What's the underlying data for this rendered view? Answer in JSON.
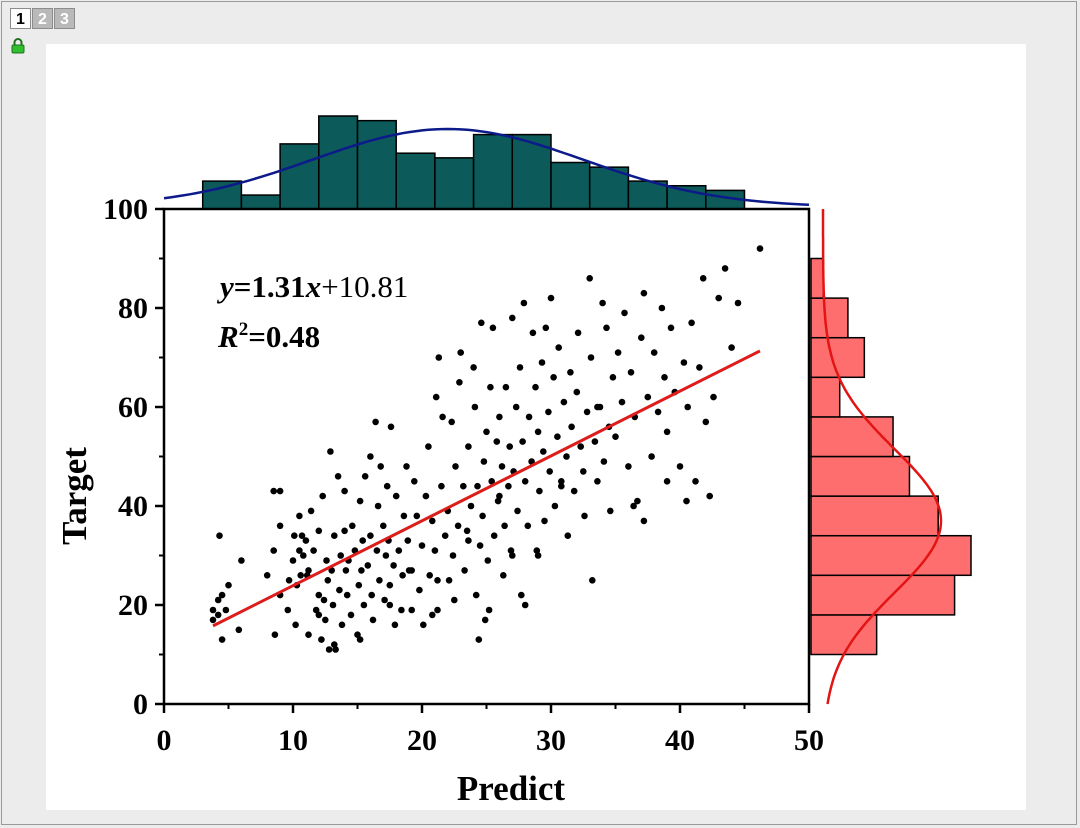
{
  "layer_tabs": [
    "1",
    "2",
    "3"
  ],
  "active_layer": "1",
  "colors": {
    "scatter_point": "#000000",
    "fit_line": "#dd1c1c",
    "top_hist_fill": "#0c5a5a",
    "top_curve": "#0c1a8a",
    "right_hist_fill": "#ff6e6e",
    "right_curve": "#e31414",
    "canvas_bg": "#ffffff",
    "window_bg": "#ececec"
  },
  "icons": {
    "lock": "lock-icon"
  },
  "chart_data": [
    {
      "type": "scatter",
      "xlabel": "Predict",
      "ylabel": "Target",
      "xlim": [
        0,
        50
      ],
      "ylim": [
        0,
        100
      ],
      "xticks": [
        "0",
        "10",
        "20",
        "30",
        "40",
        "50"
      ],
      "yticks": [
        "0",
        "20",
        "40",
        "60",
        "80",
        "100"
      ],
      "grid": false,
      "annotations": {
        "equation_y": "y",
        "equation_rest": "=1.31",
        "equation_x": "x",
        "equation_tail": "+10.81",
        "r_symbol": "R",
        "r_sup": "2",
        "r_value": "=0.48"
      },
      "fit_line": {
        "slope": 1.31,
        "intercept": 10.81,
        "x_range": [
          3.8,
          46.2
        ]
      },
      "points": [
        [
          3.8,
          19
        ],
        [
          3.8,
          17
        ],
        [
          4.2,
          18
        ],
        [
          4.2,
          21
        ],
        [
          4.5,
          13
        ],
        [
          4.3,
          34
        ],
        [
          4.5,
          22
        ],
        [
          4.8,
          19
        ],
        [
          5.0,
          24
        ],
        [
          5.8,
          15
        ],
        [
          6.0,
          29
        ],
        [
          8.0,
          26
        ],
        [
          8.5,
          31
        ],
        [
          8.5,
          43
        ],
        [
          8.6,
          14
        ],
        [
          9.0,
          22
        ],
        [
          9.0,
          43
        ],
        [
          9.6,
          19
        ],
        [
          9.7,
          25
        ],
        [
          10.0,
          29
        ],
        [
          10.1,
          34
        ],
        [
          10.2,
          16
        ],
        [
          10.3,
          24
        ],
        [
          10.5,
          38
        ],
        [
          10.6,
          26
        ],
        [
          10.7,
          34
        ],
        [
          10.8,
          30
        ],
        [
          11.0,
          33
        ],
        [
          11.2,
          14
        ],
        [
          11.2,
          27
        ],
        [
          11.4,
          39
        ],
        [
          11.6,
          31
        ],
        [
          11.8,
          19
        ],
        [
          12.0,
          35
        ],
        [
          12.0,
          22
        ],
        [
          12.2,
          13
        ],
        [
          12.3,
          42
        ],
        [
          12.4,
          21
        ],
        [
          12.5,
          17
        ],
        [
          12.6,
          29
        ],
        [
          12.7,
          25
        ],
        [
          12.8,
          11
        ],
        [
          12.9,
          51
        ],
        [
          13.0,
          27
        ],
        [
          13.1,
          20
        ],
        [
          13.2,
          34
        ],
        [
          13.3,
          11
        ],
        [
          13.5,
          46
        ],
        [
          13.6,
          23
        ],
        [
          13.7,
          30
        ],
        [
          13.8,
          16
        ],
        [
          14.0,
          43
        ],
        [
          14.0,
          35
        ],
        [
          14.1,
          27
        ],
        [
          14.2,
          22
        ],
        [
          14.3,
          29
        ],
        [
          14.5,
          18
        ],
        [
          14.6,
          36
        ],
        [
          14.8,
          31
        ],
        [
          15.0,
          14
        ],
        [
          15.1,
          24
        ],
        [
          15.2,
          41
        ],
        [
          15.3,
          27
        ],
        [
          15.4,
          33
        ],
        [
          15.5,
          20
        ],
        [
          15.6,
          46
        ],
        [
          15.8,
          28
        ],
        [
          16.0,
          50
        ],
        [
          16.0,
          34
        ],
        [
          16.1,
          22
        ],
        [
          16.2,
          17
        ],
        [
          16.4,
          57
        ],
        [
          16.5,
          31
        ],
        [
          16.6,
          40
        ],
        [
          16.7,
          25
        ],
        [
          16.8,
          48
        ],
        [
          17.0,
          36
        ],
        [
          17.1,
          21
        ],
        [
          17.2,
          30
        ],
        [
          17.3,
          44
        ],
        [
          17.4,
          33
        ],
        [
          17.5,
          24
        ],
        [
          17.6,
          56
        ],
        [
          17.8,
          28
        ],
        [
          17.9,
          16
        ],
        [
          18.0,
          42
        ],
        [
          18.2,
          31
        ],
        [
          18.4,
          19
        ],
        [
          18.5,
          26
        ],
        [
          18.6,
          38
        ],
        [
          18.8,
          48
        ],
        [
          18.9,
          33
        ],
        [
          19.0,
          27
        ],
        [
          19.2,
          19
        ],
        [
          19.4,
          45
        ],
        [
          19.6,
          38
        ],
        [
          19.8,
          23
        ],
        [
          20.0,
          32
        ],
        [
          20.1,
          16
        ],
        [
          20.3,
          42
        ],
        [
          20.5,
          52
        ],
        [
          20.6,
          26
        ],
        [
          20.8,
          37
        ],
        [
          21.0,
          31
        ],
        [
          21.1,
          62
        ],
        [
          21.2,
          19
        ],
        [
          21.3,
          70
        ],
        [
          21.5,
          44
        ],
        [
          21.6,
          58
        ],
        [
          21.8,
          34
        ],
        [
          22.0,
          39
        ],
        [
          22.1,
          25
        ],
        [
          22.3,
          57
        ],
        [
          22.4,
          30
        ],
        [
          22.6,
          48
        ],
        [
          22.8,
          36
        ],
        [
          22.9,
          65
        ],
        [
          23.0,
          71
        ],
        [
          23.2,
          44
        ],
        [
          23.3,
          27
        ],
        [
          23.5,
          35
        ],
        [
          23.6,
          52
        ],
        [
          23.8,
          40
        ],
        [
          24.0,
          68
        ],
        [
          24.1,
          60
        ],
        [
          24.2,
          22
        ],
        [
          24.3,
          44
        ],
        [
          24.4,
          13
        ],
        [
          24.5,
          32
        ],
        [
          24.6,
          77
        ],
        [
          24.7,
          38
        ],
        [
          24.8,
          49
        ],
        [
          24.9,
          17
        ],
        [
          25.0,
          55
        ],
        [
          25.1,
          29
        ],
        [
          25.3,
          64
        ],
        [
          25.4,
          45
        ],
        [
          25.5,
          76
        ],
        [
          25.6,
          34
        ],
        [
          25.8,
          53
        ],
        [
          25.9,
          41
        ],
        [
          26.0,
          58
        ],
        [
          26.2,
          48
        ],
        [
          26.3,
          26
        ],
        [
          26.4,
          36
        ],
        [
          26.5,
          64
        ],
        [
          26.7,
          44
        ],
        [
          26.8,
          52
        ],
        [
          26.9,
          31
        ],
        [
          27.0,
          78
        ],
        [
          27.1,
          47
        ],
        [
          27.3,
          60
        ],
        [
          27.4,
          39
        ],
        [
          27.6,
          68
        ],
        [
          27.7,
          22
        ],
        [
          27.8,
          53
        ],
        [
          27.9,
          81
        ],
        [
          28.0,
          45
        ],
        [
          28.2,
          36
        ],
        [
          28.3,
          58
        ],
        [
          28.5,
          49
        ],
        [
          28.6,
          75
        ],
        [
          28.8,
          64
        ],
        [
          28.9,
          31
        ],
        [
          29.0,
          55
        ],
        [
          29.1,
          43
        ],
        [
          29.3,
          69
        ],
        [
          29.4,
          51
        ],
        [
          29.5,
          37
        ],
        [
          29.6,
          76
        ],
        [
          29.8,
          59
        ],
        [
          29.9,
          47
        ],
        [
          30.0,
          82
        ],
        [
          30.2,
          66
        ],
        [
          30.3,
          40
        ],
        [
          30.5,
          54
        ],
        [
          30.6,
          72
        ],
        [
          30.8,
          45
        ],
        [
          31.0,
          61
        ],
        [
          31.2,
          50
        ],
        [
          31.3,
          34
        ],
        [
          31.5,
          67
        ],
        [
          31.6,
          56
        ],
        [
          31.8,
          43
        ],
        [
          32.0,
          63
        ],
        [
          32.1,
          75
        ],
        [
          32.3,
          52
        ],
        [
          32.5,
          47
        ],
        [
          32.6,
          38
        ],
        [
          32.8,
          59
        ],
        [
          33.0,
          86
        ],
        [
          33.1,
          70
        ],
        [
          33.2,
          25
        ],
        [
          33.4,
          53
        ],
        [
          33.6,
          45
        ],
        [
          33.8,
          60
        ],
        [
          34.0,
          81
        ],
        [
          34.1,
          49
        ],
        [
          34.3,
          76
        ],
        [
          34.5,
          56
        ],
        [
          34.6,
          39
        ],
        [
          34.8,
          66
        ],
        [
          35.0,
          54
        ],
        [
          35.2,
          71
        ],
        [
          35.5,
          61
        ],
        [
          35.7,
          79
        ],
        [
          36.0,
          48
        ],
        [
          36.2,
          67
        ],
        [
          36.5,
          58
        ],
        [
          36.7,
          41
        ],
        [
          37.0,
          74
        ],
        [
          37.2,
          83
        ],
        [
          37.5,
          62
        ],
        [
          37.8,
          50
        ],
        [
          38.0,
          71
        ],
        [
          38.3,
          59
        ],
        [
          38.6,
          80
        ],
        [
          38.8,
          66
        ],
        [
          39.0,
          55
        ],
        [
          39.3,
          76
        ],
        [
          39.6,
          63
        ],
        [
          40.0,
          48
        ],
        [
          40.3,
          69
        ],
        [
          40.6,
          60
        ],
        [
          40.9,
          77
        ],
        [
          41.2,
          45
        ],
        [
          41.5,
          68
        ],
        [
          41.8,
          86
        ],
        [
          42.0,
          57
        ],
        [
          42.3,
          42
        ],
        [
          42.6,
          62
        ],
        [
          43.0,
          82
        ],
        [
          43.5,
          88
        ],
        [
          44.0,
          72
        ],
        [
          44.5,
          81
        ],
        [
          46.2,
          92
        ],
        [
          36.4,
          40
        ],
        [
          37.2,
          37
        ],
        [
          39.0,
          45
        ],
        [
          40.5,
          41
        ],
        [
          33.6,
          60
        ],
        [
          30.8,
          44
        ],
        [
          29.0,
          30
        ],
        [
          27.0,
          30
        ],
        [
          25.2,
          19
        ],
        [
          22.5,
          21
        ],
        [
          20.8,
          18
        ],
        [
          19.2,
          27
        ],
        [
          17.5,
          20
        ],
        [
          15.2,
          13
        ],
        [
          13.2,
          12
        ],
        [
          12.0,
          18
        ],
        [
          11.1,
          26
        ],
        [
          10.5,
          31
        ],
        [
          9.0,
          36
        ],
        [
          21.2,
          25
        ],
        [
          23.6,
          33
        ],
        [
          26.0,
          42
        ],
        [
          28.0,
          20
        ]
      ],
      "top_histogram": {
        "bin_edges": [
          0,
          3,
          6,
          9,
          12,
          15,
          18,
          21,
          24,
          27,
          30,
          33,
          36,
          39,
          42,
          45,
          48,
          51
        ],
        "counts": [
          0,
          6,
          3,
          14,
          20,
          19,
          12,
          11,
          16,
          16,
          10,
          9,
          6,
          5,
          4,
          0,
          0
        ]
      },
      "top_density": {
        "mean": 22.0,
        "sd": 10.5
      },
      "right_histogram": {
        "bin_edges": [
          10,
          18,
          26,
          34,
          42,
          50,
          58,
          66,
          74,
          82,
          90,
          98
        ],
        "counts": [
          16,
          35,
          39,
          31,
          24,
          20,
          7,
          13,
          9,
          3,
          0
        ]
      },
      "right_density": {
        "mean": 37.0,
        "sd": 14.5
      }
    }
  ]
}
